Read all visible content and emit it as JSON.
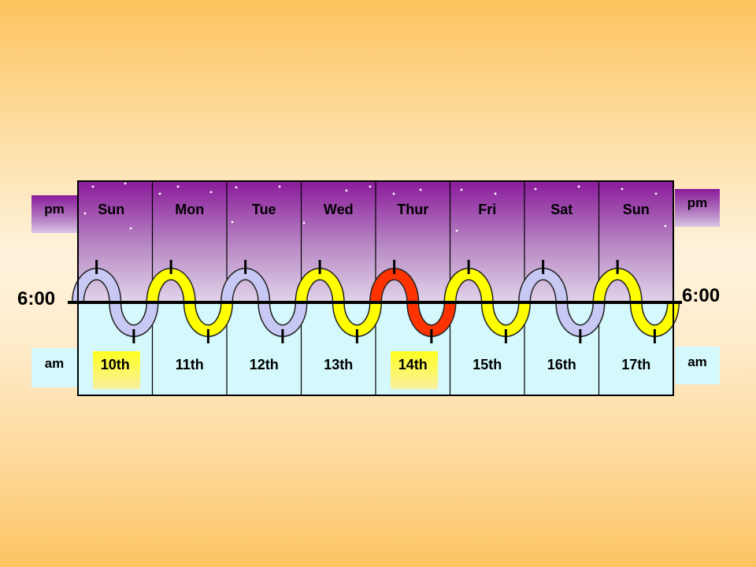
{
  "labels": {
    "pm": "pm",
    "am": "am",
    "time_left": "6:00",
    "time_right": "6:00"
  },
  "days": [
    {
      "day": "Sun",
      "date": "10th",
      "color": "#c8c8f4",
      "highlight": true
    },
    {
      "day": "Mon",
      "date": "11th",
      "color": "#ffff00",
      "highlight": false
    },
    {
      "day": "Tue",
      "date": "12th",
      "color": "#c8c8f4",
      "highlight": false
    },
    {
      "day": "Wed",
      "date": "13th",
      "color": "#ffff00",
      "highlight": false
    },
    {
      "day": "Thur",
      "date": "14th",
      "color": "#ff3300",
      "highlight": true
    },
    {
      "day": "Fri",
      "date": "15th",
      "color": "#ffff00",
      "highlight": false
    },
    {
      "day": "Sat",
      "date": "16th",
      "color": "#c8c8f4",
      "highlight": false
    },
    {
      "day": "Sun",
      "date": "17th",
      "color": "#ffff00",
      "highlight": false
    }
  ],
  "colors": {
    "pm_top": "#8a1a9a",
    "am_bg": "#d4f8fc",
    "highlight": "#ffff33"
  }
}
